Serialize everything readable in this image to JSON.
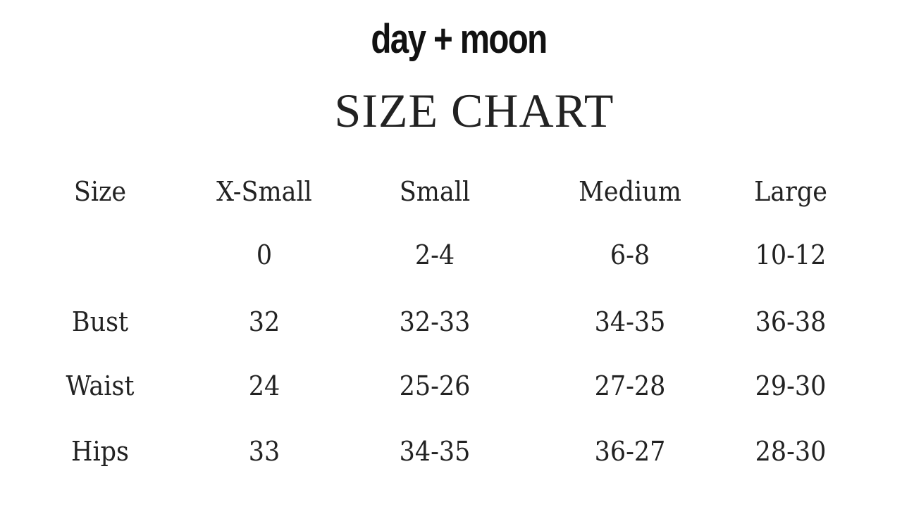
{
  "brand": "day + moon",
  "title": "SIZE CHART",
  "table": {
    "columns": [
      "Size",
      "X-Small",
      "Small",
      "Medium",
      "Large"
    ],
    "rows": [
      [
        "",
        "0",
        "2-4",
        "6-8",
        "10-12"
      ],
      [
        "Bust",
        "32",
        "32-33",
        "34-35",
        "36-38"
      ],
      [
        "Waist",
        "24",
        "25-26",
        "27-28",
        "29-30"
      ],
      [
        "Hips",
        "33",
        "34-35",
        "36-27",
        "28-30"
      ]
    ]
  }
}
